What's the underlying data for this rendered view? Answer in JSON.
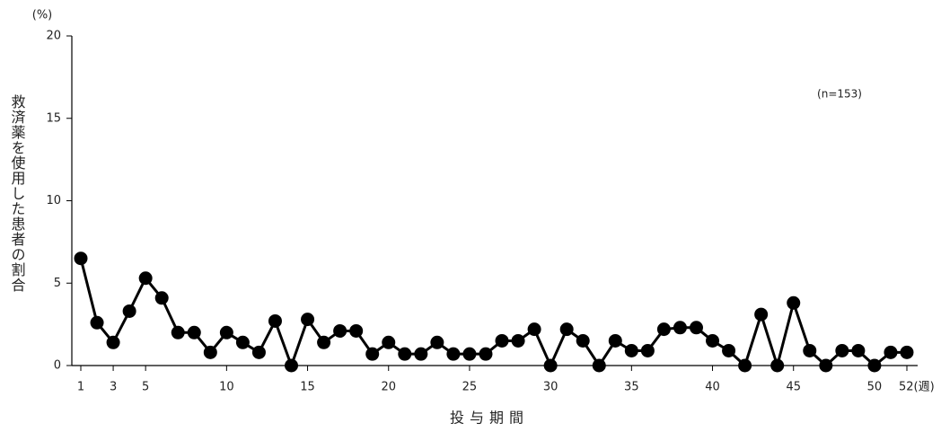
{
  "chart_data": {
    "type": "line",
    "y_unit": "(%)",
    "ylabel": "救済薬を使用した患者の割合",
    "xlabel": "投与期間",
    "annotation": "(n=153)",
    "x": [
      1,
      2,
      3,
      4,
      5,
      6,
      7,
      8,
      9,
      10,
      11,
      12,
      13,
      14,
      15,
      16,
      17,
      18,
      19,
      20,
      21,
      22,
      23,
      24,
      25,
      26,
      27,
      28,
      29,
      30,
      31,
      32,
      33,
      34,
      35,
      36,
      37,
      38,
      39,
      40,
      41,
      42,
      43,
      44,
      45,
      46,
      47,
      48,
      49,
      50,
      51,
      52
    ],
    "series": [
      {
        "color": "#000000",
        "values": [
          6.5,
          2.6,
          1.4,
          3.3,
          5.3,
          4.1,
          2.0,
          2.0,
          0.8,
          2.0,
          1.4,
          0.8,
          2.7,
          0,
          2.8,
          1.4,
          2.1,
          2.1,
          0.7,
          1.4,
          0.7,
          0.7,
          1.4,
          0.7,
          0.7,
          0.7,
          1.5,
          1.5,
          2.2,
          0,
          2.2,
          1.5,
          0,
          1.5,
          0.9,
          0.9,
          2.2,
          2.3,
          2.3,
          1.5,
          0.9,
          0,
          3.1,
          0,
          3.8,
          0.9,
          0,
          0.9,
          0.9,
          0,
          0.8,
          0.8
        ]
      }
    ],
    "xlim": [
      1,
      52
    ],
    "xticks": [
      1,
      3,
      5,
      10,
      15,
      20,
      25,
      30,
      35,
      40,
      45,
      50,
      {
        "value": 52,
        "label": "52(週)"
      }
    ],
    "ylim": [
      0,
      20
    ],
    "yticks": [
      0,
      5,
      10,
      15,
      20
    ]
  }
}
